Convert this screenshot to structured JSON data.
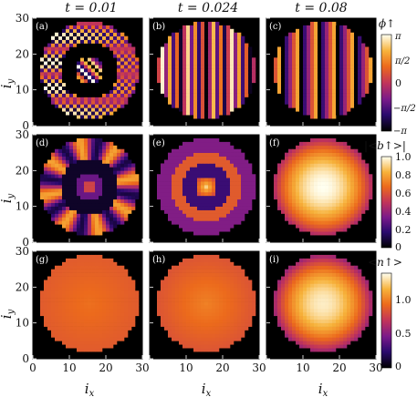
{
  "figure": {
    "column_titles": [
      "t = 0.01",
      "t = 0.024",
      "t = 0.08"
    ],
    "ylabel": "i",
    "ylabel_sub": "y",
    "xlabel": "i",
    "xlabel_sub": "x",
    "x_ticks": [
      "0",
      "10",
      "20",
      "30"
    ],
    "y_ticks": [
      "0",
      "10",
      "20",
      "30"
    ],
    "panel_labels": [
      "(a)",
      "(b)",
      "(c)",
      "(d)",
      "(e)",
      "(f)",
      "(g)",
      "(h)",
      "(i)"
    ],
    "colorbars": [
      {
        "title": "ϕ↑",
        "ticks": [
          "π",
          "π/2",
          "0",
          "−π/2",
          "−π"
        ]
      },
      {
        "title": "|<b↑>|",
        "ticks": [
          "1.0",
          "0.8",
          "0.6",
          "0.4",
          "0.2",
          "0"
        ]
      },
      {
        "title": "<n↑>",
        "ticks": [
          "1.0",
          "0.5",
          "0"
        ]
      }
    ],
    "colormap": [
      "#000000",
      "#2a0a6e",
      "#7a1a8a",
      "#c2345a",
      "#ec6a1c",
      "#f7b23a",
      "#fffff0"
    ]
  },
  "chart_data": {
    "type": "heatmap",
    "grid_size": [
      30,
      30
    ],
    "xlim": [
      0,
      30
    ],
    "ylim": [
      0,
      30
    ],
    "rows": [
      {
        "quantity": "ϕ↑",
        "range": [
          -3.1416,
          3.1416
        ],
        "times": [
          0.01,
          0.024,
          0.08
        ]
      },
      {
        "quantity": "|<b↑>|",
        "range": [
          0,
          1.0
        ],
        "times": [
          0.01,
          0.024,
          0.08
        ]
      },
      {
        "quantity": "<n↑>",
        "range": [
          0,
          1.4
        ],
        "times": [
          0.01,
          0.024,
          0.08
        ]
      }
    ]
  }
}
